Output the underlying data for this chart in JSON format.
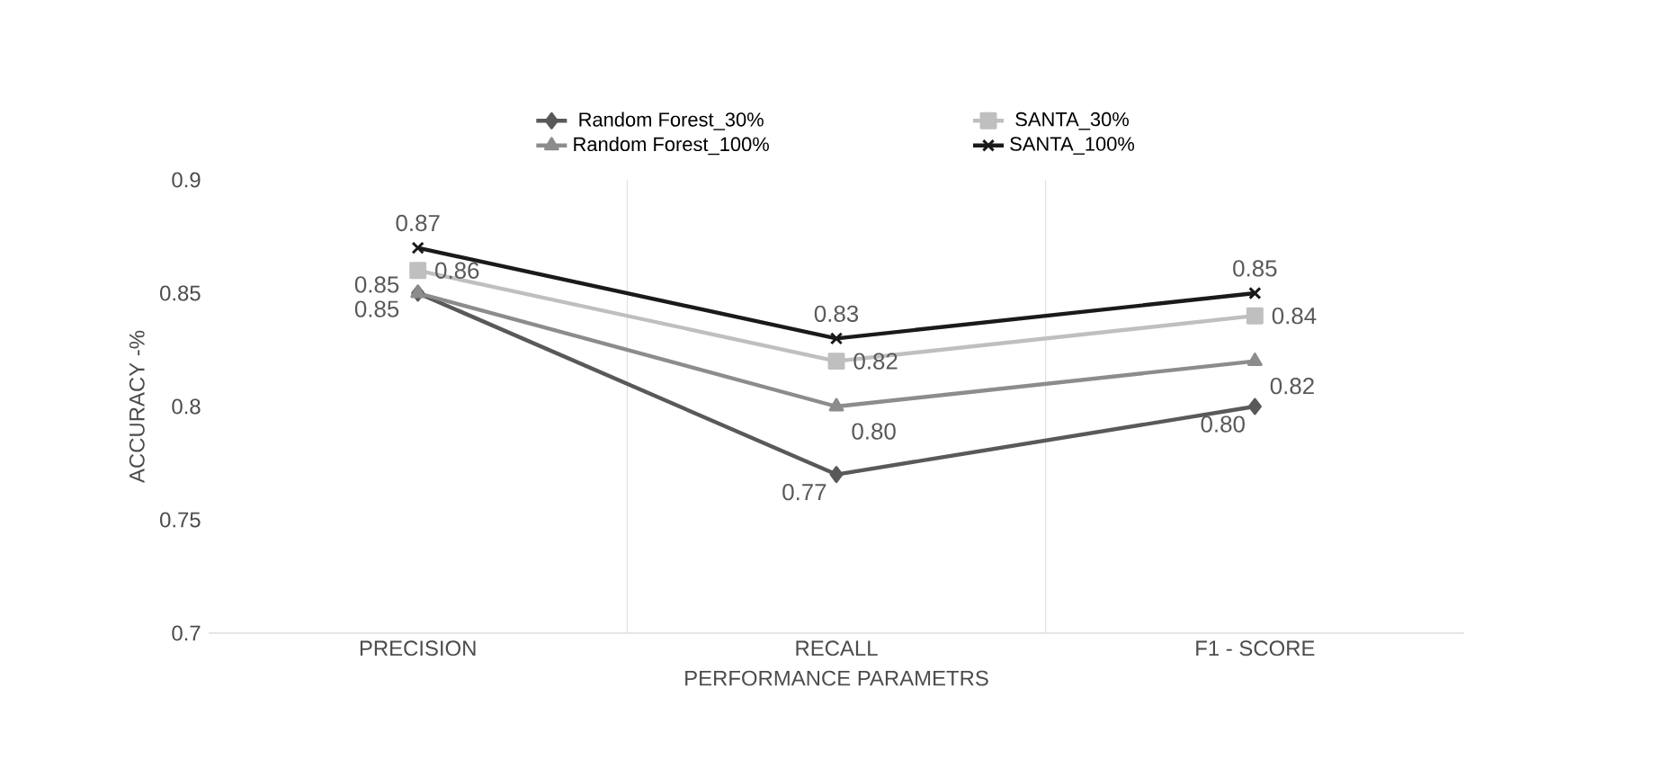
{
  "chart_data": {
    "type": "line",
    "xlabel": "PERFORMANCE PARAMETRS",
    "ylabel": "ACCURACY -%",
    "categories": [
      "PRECISION",
      "RECALL",
      "F1 - SCORE"
    ],
    "series": [
      {
        "name": "Random Forest_30%",
        "color": "#595959",
        "marker": "diamond",
        "values": [
          0.85,
          0.77,
          0.8
        ],
        "value_labels": [
          "0.85",
          "0.77",
          "0.80"
        ]
      },
      {
        "name": "SANTA_30%",
        "color": "#bfbfbf",
        "marker": "square",
        "values": [
          0.86,
          0.82,
          0.84
        ],
        "value_labels": [
          "0.86",
          "0.82",
          "0.84"
        ]
      },
      {
        "name": "Random Forest_100%",
        "color": "#8c8c8c",
        "marker": "triangle",
        "values": [
          0.85,
          0.8,
          0.82
        ],
        "value_labels": [
          "0.85",
          "0.80",
          "0.82"
        ]
      },
      {
        "name": "SANTA_100%",
        "color": "#1a1a1a",
        "marker": "cross",
        "values": [
          0.87,
          0.83,
          0.85
        ],
        "value_labels": [
          "0.87",
          "0.83",
          "0.85"
        ]
      }
    ],
    "ylim": [
      0.7,
      0.9
    ],
    "yticks": [
      0.7,
      0.75,
      0.8,
      0.85,
      0.9
    ],
    "grid": "x",
    "legend": "top",
    "line_style": "solid"
  }
}
